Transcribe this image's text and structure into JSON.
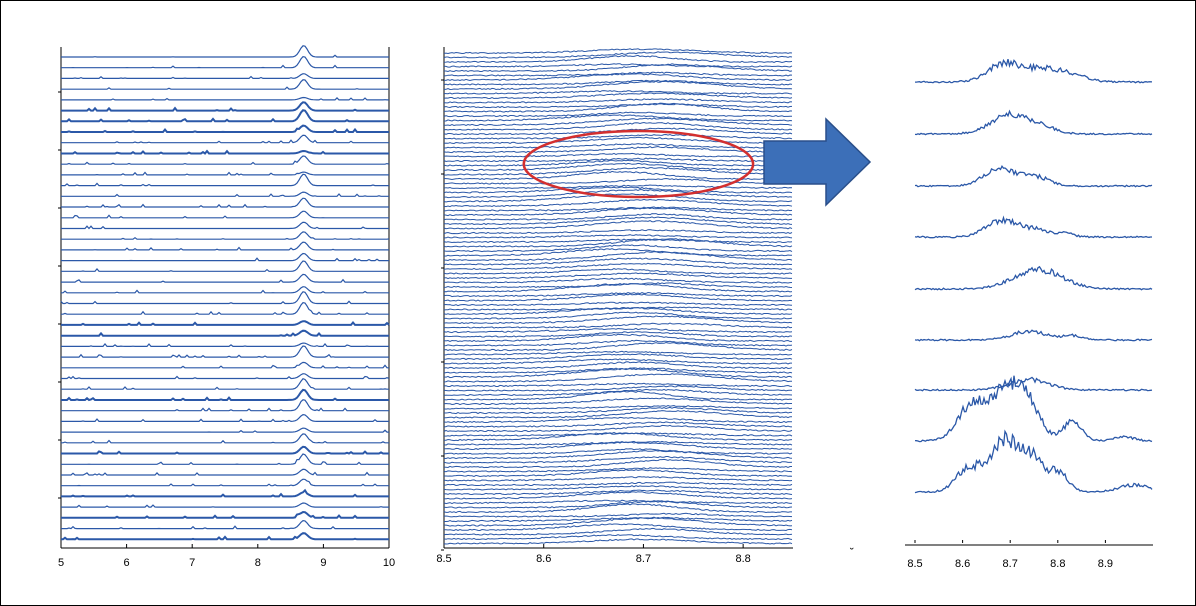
{
  "colors": {
    "trace": "#2b58a8",
    "highlight": "#d32f2f",
    "arrow_fill": "#3c6fb8",
    "arrow_stroke": "#2a4f8a",
    "axis": "#000000"
  },
  "chart_data": [
    {
      "type": "line",
      "title": "",
      "xlabel": "",
      "ylabel": "",
      "x_ticks": [
        "5",
        "6",
        "7",
        "8",
        "9",
        "10"
      ],
      "xlim": [
        5,
        10
      ],
      "trace_count": 46,
      "peak_x": 8.7,
      "y_tick_marks": 8,
      "description": "stacked waveform traces with a narrow peak near 8.7"
    },
    {
      "type": "line",
      "title": "",
      "xlabel": "",
      "ylabel": "",
      "x_ticks": [
        "8.5",
        "8.6",
        "8.7",
        "8.8"
      ],
      "xlim": [
        8.5,
        8.85
      ],
      "trace_count": 110,
      "peak_x": 8.7,
      "highlight": {
        "shape": "ellipse",
        "color": "red",
        "center_x": 8.695,
        "x_halfwidth": 0.115
      },
      "description": "zoomed stacked traces; a red ellipse marks the rows enlarged on the right"
    },
    {
      "type": "line",
      "title": "",
      "xlabel": "",
      "ylabel": "",
      "x_ticks": [
        "8.5",
        "8.6",
        "8.7",
        "8.8",
        "8.9"
      ],
      "xlim": [
        8.5,
        9.0
      ],
      "series": [
        {
          "peaks": [
            [
              8.69,
              0.55,
              0.035
            ],
            [
              8.77,
              0.35,
              0.03
            ],
            [
              8.83,
              0.22,
              0.03
            ]
          ]
        },
        {
          "peaks": [
            [
              8.7,
              0.55,
              0.04
            ],
            [
              8.77,
              0.15,
              0.03
            ]
          ]
        },
        {
          "peaks": [
            [
              8.66,
              0.28,
              0.025
            ],
            [
              8.7,
              0.35,
              0.03
            ],
            [
              8.76,
              0.22,
              0.025
            ]
          ]
        },
        {
          "peaks": [
            [
              8.66,
              0.22,
              0.025
            ],
            [
              8.7,
              0.4,
              0.03
            ],
            [
              8.76,
              0.18,
              0.02
            ],
            [
              8.81,
              0.12,
              0.02
            ]
          ]
        },
        {
          "peaks": [
            [
              8.76,
              0.55,
              0.05
            ]
          ]
        },
        {
          "peaks": [
            [
              8.74,
              0.25,
              0.035
            ],
            [
              8.83,
              0.12,
              0.02
            ]
          ]
        },
        {
          "peaks": [
            [
              8.74,
              0.3,
              0.04
            ]
          ]
        },
        {
          "peaks": [
            [
              8.62,
              1.0,
              0.03
            ],
            [
              8.7,
              1.6,
              0.035
            ],
            [
              8.75,
              0.5,
              0.02
            ],
            [
              8.83,
              0.55,
              0.02
            ],
            [
              8.94,
              0.12,
              0.02
            ]
          ]
        },
        {
          "peaks": [
            [
              8.61,
              0.6,
              0.025
            ],
            [
              8.69,
              1.5,
              0.035
            ],
            [
              8.75,
              0.7,
              0.02
            ],
            [
              8.8,
              0.6,
              0.02
            ],
            [
              8.96,
              0.2,
              0.03
            ]
          ]
        }
      ],
      "description": "nine enlarged traces from the highlighted region"
    }
  ]
}
